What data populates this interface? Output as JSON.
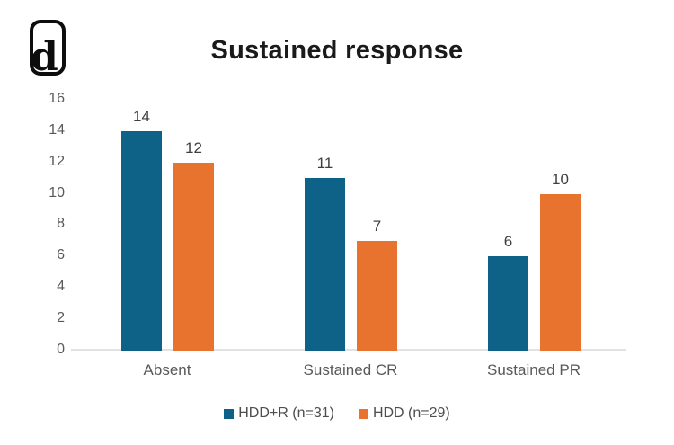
{
  "logo": {
    "letter": "d"
  },
  "chart_data": {
    "type": "bar",
    "title": "Sustained response",
    "categories": [
      "Absent",
      "Sustained CR",
      "Sustained PR"
    ],
    "series": [
      {
        "name": "HDD+R (n=31)",
        "values": [
          14,
          11,
          6
        ],
        "color": "#0e6287"
      },
      {
        "name": "HDD (n=29)",
        "values": [
          12,
          7,
          10
        ],
        "color": "#e8732e"
      }
    ],
    "xlabel": "",
    "ylabel": "",
    "ylim": [
      0,
      16
    ],
    "yticks": [
      0,
      2,
      4,
      6,
      8,
      10,
      12,
      14,
      16
    ],
    "grid": false,
    "legend_position": "bottom",
    "value_labels": true
  },
  "colors": {
    "background": "#ffffff",
    "title": "#1a1a1a",
    "axis_line": "#e2e2e2",
    "tick_label": "#595959",
    "value_label": "#3f3f3f",
    "category_label": "#595959",
    "legend_label": "#4d4d4d"
  }
}
